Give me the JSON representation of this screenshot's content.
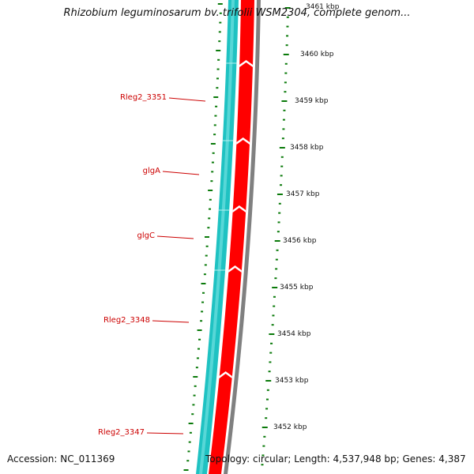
{
  "title": "Rhizobium leguminosarum bv. trifolii WSM2304, complete genom...",
  "accession": "Accession: NC_011369",
  "summary": "Topology: circular; Length: 4,537,948 bp; Genes: 4,387",
  "colors": {
    "forward_strand": "#ff0000",
    "reverse_strand": "#1fc2c2",
    "backbone": "#808080",
    "label": "#cc0000",
    "ticks": "#0a7a0a"
  },
  "scale_labels": [
    "3461 kbp",
    "3460 kbp",
    "3459 kbp",
    "3458 kbp",
    "3457 kbp",
    "3456 kbp",
    "3455 kbp",
    "3454 kbp",
    "3453 kbp",
    "3452 kbp"
  ],
  "gene_labels": [
    "Rleg2_3351",
    "glgA",
    "glgC",
    "Rleg2_3348",
    "Rleg2_3347"
  ]
}
